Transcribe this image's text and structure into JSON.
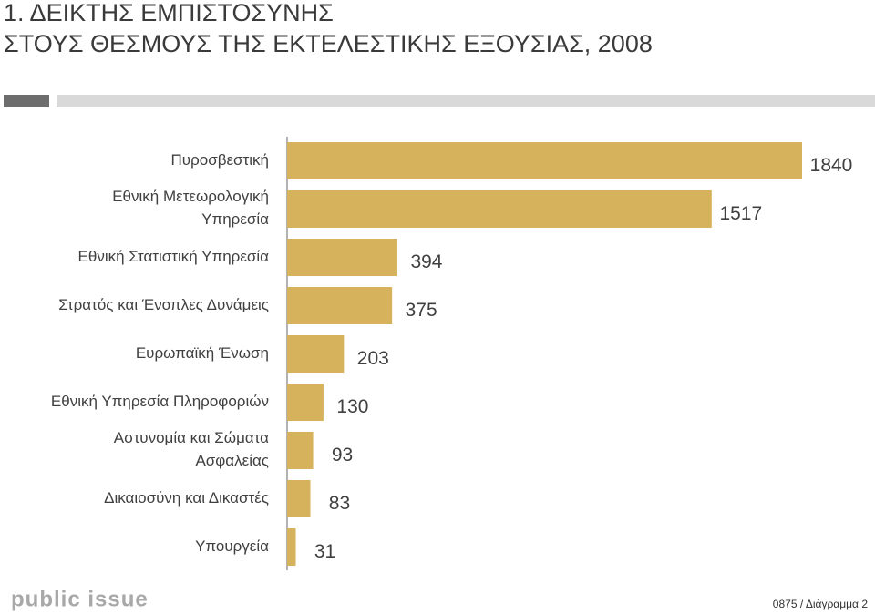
{
  "chart_data": {
    "type": "hbar",
    "title": "1. ΔΕΙΚΤΗΣ ΕΜΠΙΣΤΟΣΥΝΗΣ\nΣΤΟΥΣ ΘΕΣΜΟΥΣ ΤΗΣ ΕΚΤΕΛΕΣΤΙΚΗΣ ΕΞΟΥΣΙΑΣ, 2008",
    "categories": [
      "Πυροσβεστική",
      "Εθνική Μετεωρολογική\nΥπηρεσία",
      "Εθνική Στατιστική Υπηρεσία",
      "Στρατός και Ένοπλες Δυνάμεις",
      "Ευρωπαϊκή Ένωση",
      "Εθνική Υπηρεσία Πληροφοριών",
      "Αστυνομία και Σώματα\nΑσφαλείας",
      "Δικαιοσύνη και Δικαστές",
      "Υπουργεία"
    ],
    "values": [
      1840,
      1517,
      394,
      375,
      203,
      130,
      93,
      83,
      31
    ],
    "color": "#d6b25c"
  },
  "footer": {
    "logo": "public issue",
    "code": "0875 / Διάγραμμα 2"
  }
}
